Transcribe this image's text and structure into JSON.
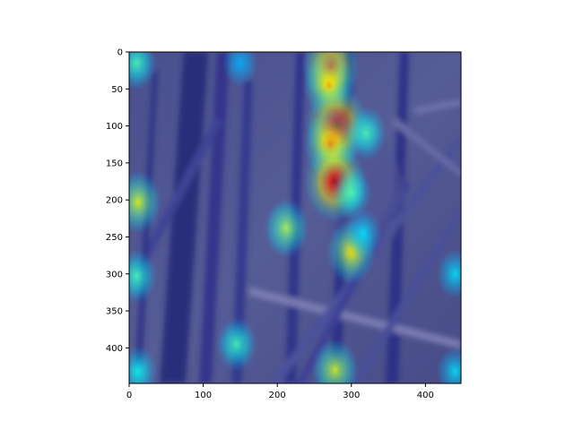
{
  "chart_data": {
    "type": "heatmap",
    "title": "",
    "xlabel": "",
    "ylabel": "",
    "xlim": [
      0,
      448
    ],
    "ylim": [
      448,
      0
    ],
    "xticks": [
      0,
      100,
      200,
      300,
      400
    ],
    "yticks": [
      0,
      50,
      100,
      150,
      200,
      250,
      300,
      350,
      400
    ],
    "colormap": "jet",
    "grid": false,
    "background_image": "bird among dry reeds (saliency overlay)",
    "hotspots": [
      {
        "x": 272,
        "y": 20,
        "intensity": 0.85
      },
      {
        "x": 270,
        "y": 45,
        "intensity": 0.7
      },
      {
        "x": 280,
        "y": 100,
        "intensity": 1.0
      },
      {
        "x": 272,
        "y": 125,
        "intensity": 0.75
      },
      {
        "x": 320,
        "y": 110,
        "intensity": 0.45
      },
      {
        "x": 278,
        "y": 175,
        "intensity": 0.95
      },
      {
        "x": 300,
        "y": 190,
        "intensity": 0.45
      },
      {
        "x": 212,
        "y": 238,
        "intensity": 0.55
      },
      {
        "x": 300,
        "y": 270,
        "intensity": 0.65
      },
      {
        "x": 316,
        "y": 245,
        "intensity": 0.35
      },
      {
        "x": 12,
        "y": 203,
        "intensity": 0.6
      },
      {
        "x": 10,
        "y": 303,
        "intensity": 0.45
      },
      {
        "x": 10,
        "y": 15,
        "intensity": 0.45
      },
      {
        "x": 145,
        "y": 395,
        "intensity": 0.45
      },
      {
        "x": 278,
        "y": 430,
        "intensity": 0.6
      },
      {
        "x": 12,
        "y": 432,
        "intensity": 0.4
      },
      {
        "x": 440,
        "y": 300,
        "intensity": 0.35
      },
      {
        "x": 440,
        "y": 432,
        "intensity": 0.35
      },
      {
        "x": 150,
        "y": 15,
        "intensity": 0.3
      }
    ]
  }
}
